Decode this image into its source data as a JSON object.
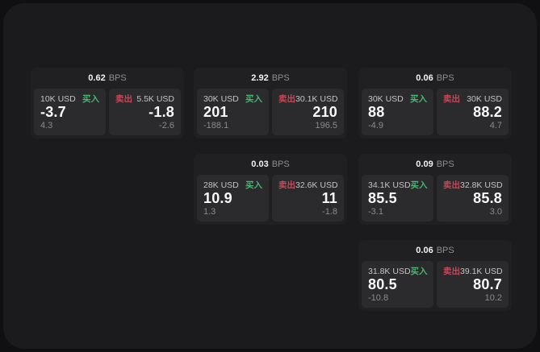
{
  "page": {
    "outer_bg": "#101012",
    "panel_bg": "#1b1b1d"
  },
  "labels": {
    "bps_unit": "BPS",
    "buy": "买入",
    "sell": "卖出"
  },
  "colors": {
    "buy": "#48b573",
    "sell": "#c2495a",
    "value_text": "#fafafa",
    "muted_text": "#8a8a8a"
  },
  "cards": [
    {
      "bps": "0.62",
      "col": 0,
      "row": 0,
      "buy": {
        "notional": "10K USD",
        "value": "-3.7",
        "delta": "4.3"
      },
      "sell": {
        "notional": "5.5K USD",
        "value": "-1.8",
        "delta": "-2.6"
      }
    },
    {
      "bps": "2.92",
      "col": 1,
      "row": 0,
      "buy": {
        "notional": "30K USD",
        "value": "201",
        "delta": "-188.1"
      },
      "sell": {
        "notional": "30.1K USD",
        "value": "210",
        "delta": "196.5"
      }
    },
    {
      "bps": "0.06",
      "col": 2,
      "row": 0,
      "buy": {
        "notional": "30K USD",
        "value": "88",
        "delta": "-4.9"
      },
      "sell": {
        "notional": "30K USD",
        "value": "88.2",
        "delta": "4.7"
      }
    },
    {
      "bps": "0.03",
      "col": 1,
      "row": 1,
      "buy": {
        "notional": "28K USD",
        "value": "10.9",
        "delta": "1.3"
      },
      "sell": {
        "notional": "32.6K USD",
        "value": "11",
        "delta": "-1.8"
      }
    },
    {
      "bps": "0.09",
      "col": 2,
      "row": 1,
      "buy": {
        "notional": "34.1K USD",
        "value": "85.5",
        "delta": "-3.1"
      },
      "sell": {
        "notional": "32.8K USD",
        "value": "85.8",
        "delta": "3.0"
      }
    },
    {
      "bps": "0.06",
      "col": 2,
      "row": 2,
      "buy": {
        "notional": "31.8K USD",
        "value": "80.5",
        "delta": "-10.8"
      },
      "sell": {
        "notional": "39.1K USD",
        "value": "80.7",
        "delta": "10.2"
      }
    }
  ]
}
